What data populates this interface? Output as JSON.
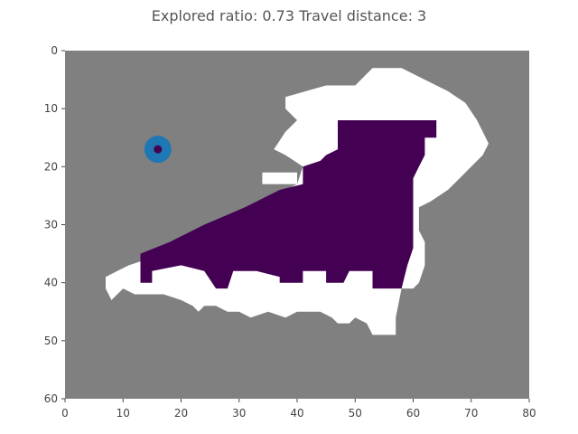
{
  "title": "Explored ratio: 0.73  Travel distance: 3",
  "colors": {
    "background": "#808080",
    "explored": "#ffffff",
    "coverage": "#440154",
    "agent_outer": "#1f77b4",
    "agent_inner": "#440154",
    "axis": "#444444"
  },
  "chart_data": {
    "type": "heatmap",
    "title": "Explored ratio: 0.73  Travel distance: 3",
    "xlim": [
      0,
      80
    ],
    "ylim": [
      60,
      0
    ],
    "x_ticks": [
      "0",
      "10",
      "20",
      "30",
      "40",
      "50",
      "60",
      "70",
      "80"
    ],
    "y_ticks": [
      "0",
      "10",
      "20",
      "30",
      "40",
      "50",
      "60"
    ],
    "grid": false,
    "agent": {
      "x": 16,
      "y": 17
    },
    "explored_regions": [
      [
        [
          38,
          8
        ],
        [
          45,
          6
        ],
        [
          50,
          6
        ],
        [
          53,
          3
        ],
        [
          58,
          3
        ],
        [
          62,
          5
        ],
        [
          66,
          7
        ],
        [
          69,
          9
        ],
        [
          71,
          12
        ],
        [
          72,
          14
        ],
        [
          73,
          16
        ],
        [
          72,
          18
        ],
        [
          70,
          20
        ],
        [
          68,
          22
        ],
        [
          66,
          24
        ],
        [
          63,
          26
        ],
        [
          61,
          27
        ],
        [
          61,
          31
        ],
        [
          62,
          33
        ],
        [
          62,
          37
        ],
        [
          61,
          40
        ],
        [
          60,
          41
        ],
        [
          58,
          41
        ],
        [
          57,
          46
        ],
        [
          57,
          49
        ],
        [
          53,
          49
        ],
        [
          52,
          47
        ],
        [
          50,
          46
        ],
        [
          49,
          47
        ],
        [
          47,
          47
        ],
        [
          46,
          46
        ],
        [
          44,
          45
        ],
        [
          40,
          45
        ],
        [
          38,
          46
        ],
        [
          35,
          45
        ],
        [
          32,
          46
        ],
        [
          30,
          45
        ],
        [
          28,
          45
        ],
        [
          26,
          44
        ],
        [
          24,
          44
        ],
        [
          23,
          45
        ],
        [
          22,
          44
        ],
        [
          20,
          43
        ],
        [
          17,
          42
        ],
        [
          14,
          42
        ],
        [
          12,
          42
        ],
        [
          10,
          41
        ],
        [
          8,
          43
        ],
        [
          7,
          41
        ],
        [
          7,
          39
        ],
        [
          9,
          38
        ],
        [
          11,
          37
        ],
        [
          14,
          36
        ],
        [
          30,
          28
        ],
        [
          33,
          26
        ],
        [
          36,
          25
        ],
        [
          40,
          23
        ],
        [
          41,
          20
        ],
        [
          38,
          18
        ],
        [
          36,
          17
        ],
        [
          38,
          14
        ],
        [
          40,
          12
        ],
        [
          38,
          10
        ]
      ],
      [
        [
          34,
          21
        ],
        [
          40,
          21
        ],
        [
          40,
          23
        ],
        [
          34,
          23
        ]
      ],
      [
        [
          47,
          37
        ],
        [
          58,
          37
        ],
        [
          58,
          41
        ],
        [
          47,
          41
        ]
      ]
    ],
    "coverage_regions": [
      [
        [
          47,
          12
        ],
        [
          64,
          12
        ],
        [
          64,
          15
        ],
        [
          62,
          15
        ],
        [
          62,
          18
        ],
        [
          61,
          20
        ],
        [
          60,
          22
        ],
        [
          60,
          34
        ],
        [
          59,
          37
        ],
        [
          58,
          41
        ],
        [
          53,
          41
        ],
        [
          53,
          38
        ],
        [
          49,
          38
        ],
        [
          48,
          40
        ],
        [
          45,
          40
        ],
        [
          45,
          38
        ],
        [
          41,
          38
        ],
        [
          41,
          40
        ],
        [
          37,
          40
        ],
        [
          37,
          39
        ],
        [
          33,
          38
        ],
        [
          29,
          38
        ],
        [
          28,
          41
        ],
        [
          26,
          41
        ],
        [
          24,
          38
        ],
        [
          20,
          37
        ],
        [
          15,
          38
        ],
        [
          15,
          40
        ],
        [
          13,
          40
        ],
        [
          13,
          35
        ],
        [
          18,
          33
        ],
        [
          24,
          30
        ],
        [
          31,
          27
        ],
        [
          37,
          24
        ],
        [
          41,
          23
        ],
        [
          41,
          20
        ],
        [
          44,
          19
        ],
        [
          45,
          18
        ],
        [
          47,
          17
        ]
      ]
    ]
  }
}
